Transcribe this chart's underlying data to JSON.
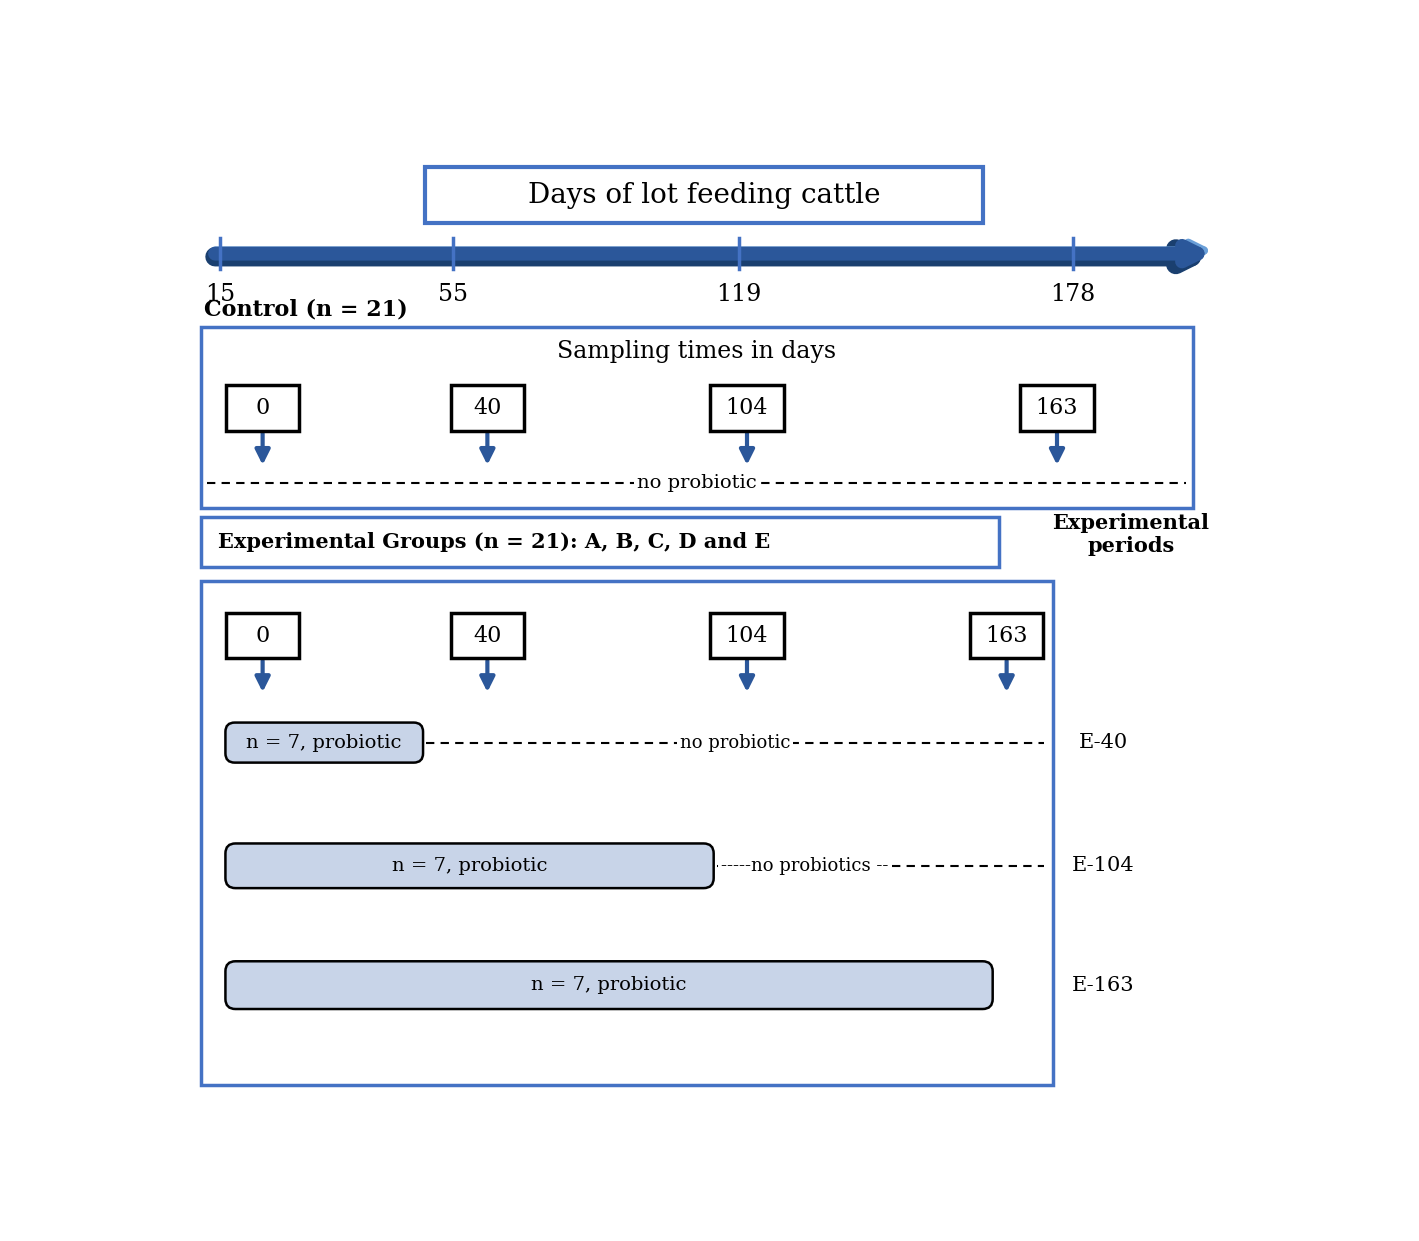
{
  "title_box_text": "Days of lot feeding cattle",
  "timeline_days": [
    "15",
    "55",
    "119",
    "178"
  ],
  "control_label": "Control (n = 21)",
  "sampling_label": "Sampling times in days",
  "control_days": [
    "0",
    "40",
    "104",
    "163"
  ],
  "no_probiotic_text": "no probiotic",
  "exp_group_label": "Experimental Groups (n = 21): A, B, C, D and E",
  "exp_periods_label": "Experimental\nperiods",
  "exp_days": [
    "0",
    "40",
    "104",
    "163"
  ],
  "e40_label": "E-40",
  "e104_label": "E-104",
  "e163_label": "E-163",
  "e40_probiotic_text": "n = 7, probiotic",
  "e40_no_probiotic_text": "no probiotic",
  "e104_probiotic_text": "n = 7, probiotic",
  "e104_no_probiotic_text": "-----no probiotics --",
  "e163_probiotic_text": "n = 7, probiotic",
  "arrow_color": "#2B579A",
  "arrow_color_light": "#5B8DD9",
  "border_color": "#4472C4",
  "probiotic_box_fill": "#C8D4E8",
  "bg_color": "#FFFFFF",
  "text_color": "#000000"
}
